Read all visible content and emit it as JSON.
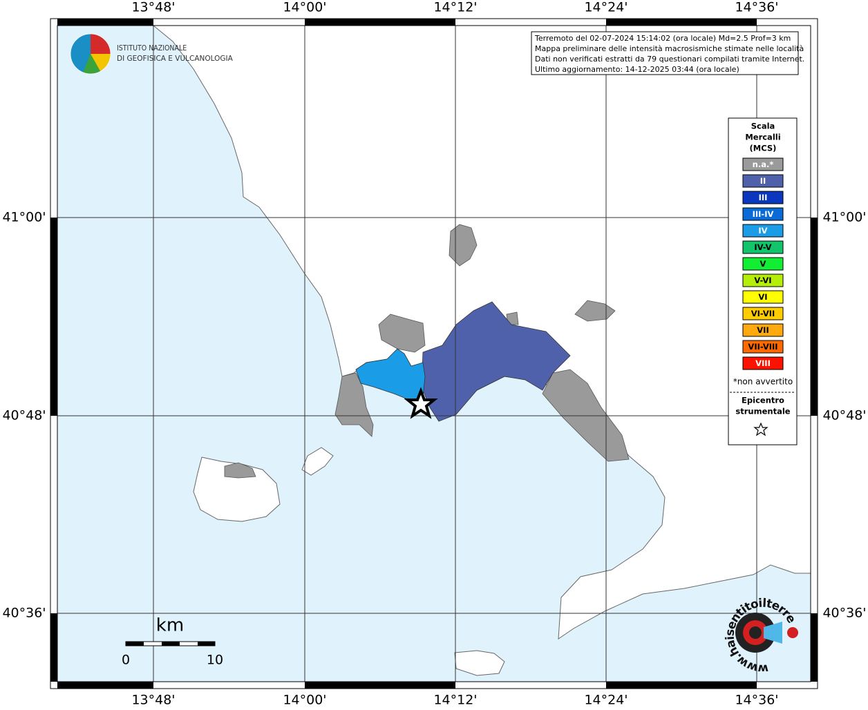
{
  "axes": {
    "top": [
      "13°48'",
      "14°00'",
      "14°12'",
      "14°24'",
      "14°36'"
    ],
    "bottom": [
      "13°48'",
      "14°00'",
      "14°12'",
      "14°24'",
      "14°36'"
    ],
    "left": [
      "41°00'",
      "40°48'",
      "40°36'"
    ],
    "right": [
      "41°00'",
      "40°48'",
      "40°36'"
    ]
  },
  "logo": {
    "line1": "ISTITUTO NAZIONALE",
    "line2": "DI GEOFISICA E VULCANOLOGIA"
  },
  "info": [
    "Terremoto del 02-07-2024 15:14:02 (ora locale) Md=2.5 Prof=3 km",
    "Mappa preliminare delle intensità macrosismiche stimate nelle località",
    "Dati non verificati estratti da 79 questionari compilati tramite Internet.",
    "Ultimo aggiornamento: 14-12-2025 03:44 (ora locale)"
  ],
  "legend": {
    "title": [
      "Scala",
      "Mercalli",
      "(MCS)"
    ],
    "items": [
      {
        "label": "n.a.*",
        "color": "#9a9a9a",
        "text_color": "#ffffff"
      },
      {
        "label": "II",
        "color": "#5061ab",
        "text_color": "#ffffff"
      },
      {
        "label": "III",
        "color": "#0a37bd",
        "text_color": "#ffffff"
      },
      {
        "label": "III-IV",
        "color": "#0a6bd6",
        "text_color": "#ffffff"
      },
      {
        "label": "IV",
        "color": "#1a9de6",
        "text_color": "#ffffff"
      },
      {
        "label": "IV-V",
        "color": "#12c46a",
        "text_color": "#000000"
      },
      {
        "label": "V",
        "color": "#12ee33",
        "text_color": "#000000"
      },
      {
        "label": "V-VI",
        "color": "#b4ee0a",
        "text_color": "#000000"
      },
      {
        "label": "VI",
        "color": "#ffff00",
        "text_color": "#000000"
      },
      {
        "label": "VI-VII",
        "color": "#ffcc00",
        "text_color": "#000000"
      },
      {
        "label": "VII",
        "color": "#ffaa11",
        "text_color": "#000000"
      },
      {
        "label": "VII-VIII",
        "color": "#ff6a00",
        "text_color": "#000000"
      },
      {
        "label": "VIII",
        "color": "#ff1100",
        "text_color": "#ffffff"
      }
    ],
    "footnote": "*non avvertito",
    "epicenter": [
      "Epicentro",
      "strumentale"
    ]
  },
  "scale_bar": {
    "unit": "km",
    "start": 0,
    "end": 10
  },
  "watermark": "www.haisentitoilterremoto.it"
}
